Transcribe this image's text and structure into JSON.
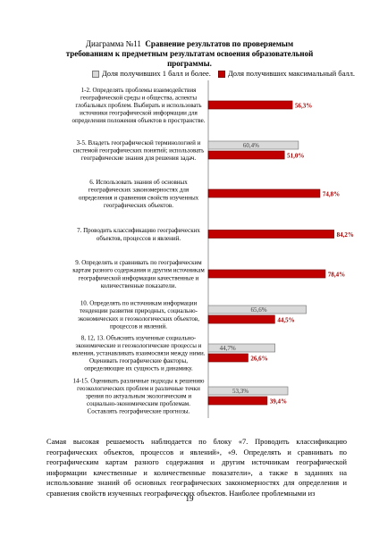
{
  "title": {
    "line1": "Диаграмма №11",
    "line1_bold": "Сравнение результатов  по проверяемым",
    "line2": "требованиям к предметным результатам освоения образовательной",
    "line3": "программы."
  },
  "colors": {
    "gray_fill": "#d9d9d9",
    "gray_stroke": "#7f7f7f",
    "red_fill": "#c00000",
    "red_stroke": "#7b0000",
    "red_label": "#a00000",
    "gray_label": "#404040"
  },
  "chart_data": {
    "type": "bar",
    "orientation": "horizontal",
    "xlim": [
      0,
      100
    ],
    "legend_position": "top",
    "grid": false,
    "series": [
      {
        "name": "Доля получивших 1 балл и более.",
        "color": "#d9d9d9",
        "values": [
          null,
          60.4,
          null,
          null,
          null,
          65.6,
          44.7,
          53.3
        ],
        "labels": [
          "",
          "60,4%",
          "",
          "",
          "",
          "65,6%",
          "44,7%",
          "53,3%"
        ]
      },
      {
        "name": "Доля получивших максимальный балл.",
        "color": "#c00000",
        "values": [
          56.3,
          51.0,
          74.8,
          84.2,
          78.4,
          44.5,
          26.6,
          39.4
        ],
        "labels": [
          "56,3%",
          "51,0%",
          "74,8%",
          "84,2%",
          "78,4%",
          "44,5%",
          "26,6%",
          "39,4%"
        ]
      }
    ],
    "categories": [
      [
        "1-2. Определять проблемы взаимодействия",
        "географической среды и общества, аспекты",
        "глобальных проблем. Выбирать и использовать",
        "источники географической информации для",
        "определения положения объектов в пространстве."
      ],
      [
        "3-5. Владеть географической терминологией и",
        "системой географических понятий; использовать",
        "географические знания  для решения задач."
      ],
      [
        "6. Использовать знания об основных",
        "географических закономерностях для",
        "определения и сравнения свойств изученных",
        "географических объектов."
      ],
      [
        "7. Проводить классификацию географических",
        "объектов, процессов и явлений."
      ],
      [
        "9. Определять и сравнивать по географическим",
        "картам разного содержания и другим источникам",
        "географической информации качественные и",
        "количественные показатели."
      ],
      [
        "10. Определять по источникам информации",
        "тенденции развития природных, социально-",
        "экономических и геоэкологических объектов,",
        "процессов и явлений."
      ],
      [
        "8, 12, 13. Объяснять изученные социально-",
        "экономические и геоэкологические процессы и",
        "явления, устанавливать взаимосвязи между ними.",
        "Оценивать географические факторы,",
        "определяющие их сущность и динамику."
      ],
      [
        "14-15. Оценивать различные подходы к решению",
        "геоэкологических проблем и различные точки",
        "зрения по актуальным экологическим и",
        "социально-экономическим проблемам.",
        "Составлять географические прогнозы."
      ]
    ]
  },
  "body_text": "Самая высокая решаемость наблюдается по блоку «7. Проводить классификацию географических объектов, процессов и явлений», «9. Определять и сравнивать по географическим картам разного содержания и другим источникам географической информации качественные и количественные показатели», а также в заданиях на использование знаний об основных географических закономерностях для определения и сравнения свойств изученных географических объектов. Наиболее проблемными из",
  "page_number": "19"
}
